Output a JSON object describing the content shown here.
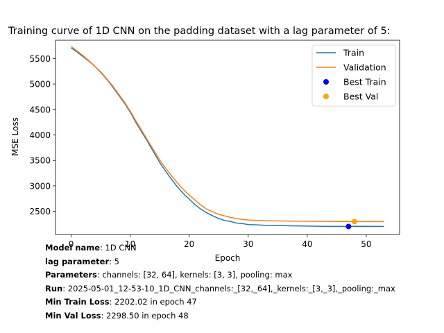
{
  "chart_data": {
    "type": "line",
    "title": "Training curve of 1D CNN on the padding dataset with a lag parameter of 5:",
    "xlabel": "Epoch",
    "ylabel": "MSE Loss",
    "xlim": [
      -2.65,
      55.65
    ],
    "ylim": [
      2045,
      5860
    ],
    "xticks": [
      0,
      10,
      20,
      30,
      40,
      50
    ],
    "yticks": [
      2500,
      3000,
      3500,
      4000,
      4500,
      5000,
      5500
    ],
    "grid": false,
    "legend_position": "top-right",
    "series": [
      {
        "name": "Train",
        "color": "#1f77b4",
        "x": [
          0,
          1,
          2,
          3,
          4,
          5,
          6,
          7,
          8,
          9,
          10,
          11,
          12,
          13,
          14,
          15,
          16,
          17,
          18,
          19,
          20,
          21,
          22,
          23,
          24,
          25,
          26,
          27,
          28,
          29,
          30,
          31,
          32,
          33,
          34,
          35,
          36,
          37,
          38,
          39,
          40,
          41,
          42,
          43,
          44,
          45,
          46,
          47,
          48,
          49,
          50,
          51,
          52,
          53
        ],
        "values": [
          5710,
          5630,
          5540,
          5450,
          5350,
          5230,
          5100,
          4950,
          4790,
          4630,
          4450,
          4240,
          4050,
          3860,
          3660,
          3460,
          3290,
          3130,
          2980,
          2850,
          2740,
          2630,
          2540,
          2470,
          2410,
          2360,
          2320,
          2300,
          2270,
          2260,
          2240,
          2235,
          2230,
          2225,
          2222,
          2220,
          2218,
          2215,
          2213,
          2212,
          2210,
          2208,
          2206,
          2205,
          2204,
          2203,
          2203,
          2202.02,
          2206,
          2205,
          2205,
          2204,
          2204,
          2204
        ]
      },
      {
        "name": "Validation",
        "color": "#ff7f0e",
        "x": [
          0,
          1,
          2,
          3,
          4,
          5,
          6,
          7,
          8,
          9,
          10,
          11,
          12,
          13,
          14,
          15,
          16,
          17,
          18,
          19,
          20,
          21,
          22,
          23,
          24,
          25,
          26,
          27,
          28,
          29,
          30,
          31,
          32,
          33,
          34,
          35,
          36,
          37,
          38,
          39,
          40,
          41,
          42,
          43,
          44,
          45,
          46,
          47,
          48,
          49,
          50,
          51,
          52,
          53
        ],
        "values": [
          5740,
          5650,
          5560,
          5460,
          5350,
          5240,
          5110,
          4970,
          4810,
          4650,
          4470,
          4270,
          4080,
          3890,
          3700,
          3510,
          3350,
          3200,
          3060,
          2930,
          2820,
          2720,
          2620,
          2540,
          2490,
          2440,
          2410,
          2380,
          2360,
          2340,
          2330,
          2325,
          2320,
          2315,
          2313,
          2311,
          2310,
          2308,
          2307,
          2306,
          2305,
          2304,
          2303,
          2302,
          2302,
          2301,
          2300,
          2300,
          2298.5,
          2299,
          2299,
          2299,
          2299,
          2299
        ]
      }
    ],
    "markers": [
      {
        "name": "Best Train",
        "color": "#0000ff",
        "x": 47,
        "y": 2202.02
      },
      {
        "name": "Best Val",
        "color": "#ffa500",
        "x": 48,
        "y": 2298.5
      }
    ]
  },
  "info": [
    {
      "key": "Model name",
      "value": ": 1D CNN"
    },
    {
      "key": "lag parameter",
      "value": ": 5"
    },
    {
      "key": "Parameters",
      "value": ": channels: [32, 64], kernels: [3, 3], pooling: max"
    },
    {
      "key": "Run",
      "value": ": 2025-05-01_12-53-10_1D_CNN_channels:_[32,_64],_kernels:_[3,_3],_pooling:_max"
    },
    {
      "key": "Min Train Loss",
      "value": ": 2202.02 in epoch 47"
    },
    {
      "key": "Min Val Loss",
      "value": ": 2298.50 in epoch 48"
    }
  ]
}
